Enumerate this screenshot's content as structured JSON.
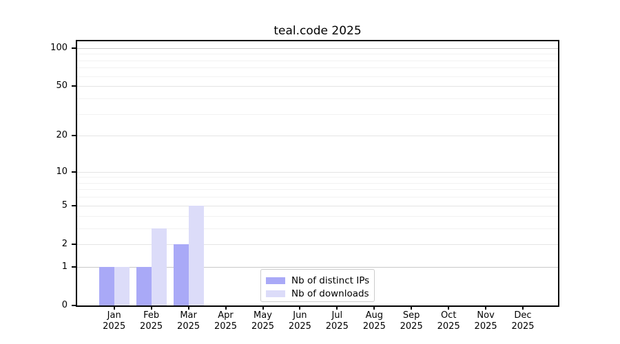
{
  "chart_data": {
    "type": "bar",
    "title": "teal.code 2025",
    "categories": [
      "Jan",
      "Feb",
      "Mar",
      "Apr",
      "May",
      "Jun",
      "Jul",
      "Aug",
      "Sep",
      "Oct",
      "Nov",
      "Dec"
    ],
    "x_year_label": "2025",
    "series": [
      {
        "name": "Nb of distinct IPs",
        "color": "#a9a9f7",
        "values": [
          1,
          1,
          2,
          0,
          0,
          0,
          0,
          0,
          0,
          0,
          0,
          0
        ]
      },
      {
        "name": "Nb of downloads",
        "color": "#dcdcf9",
        "values": [
          1,
          3,
          5,
          0,
          0,
          0,
          0,
          0,
          0,
          0,
          0,
          0
        ]
      }
    ],
    "xlabel": "",
    "ylabel": "",
    "y_scale": "symlog",
    "y_ticks": [
      0,
      1,
      2,
      5,
      10,
      20,
      50,
      100
    ],
    "y_minor_gridlines": [
      3,
      4,
      6,
      7,
      8,
      9,
      30,
      40,
      60,
      70,
      80,
      90
    ],
    "ylim": [
      0,
      113
    ],
    "grid": true,
    "legend_position": "lower-center",
    "colors": {
      "axis": "#000000",
      "grid_strong": "#c8c8c8",
      "grid_mid": "#e4e4e4",
      "grid_minor": "#f2f2f2",
      "text": "#000000"
    }
  }
}
